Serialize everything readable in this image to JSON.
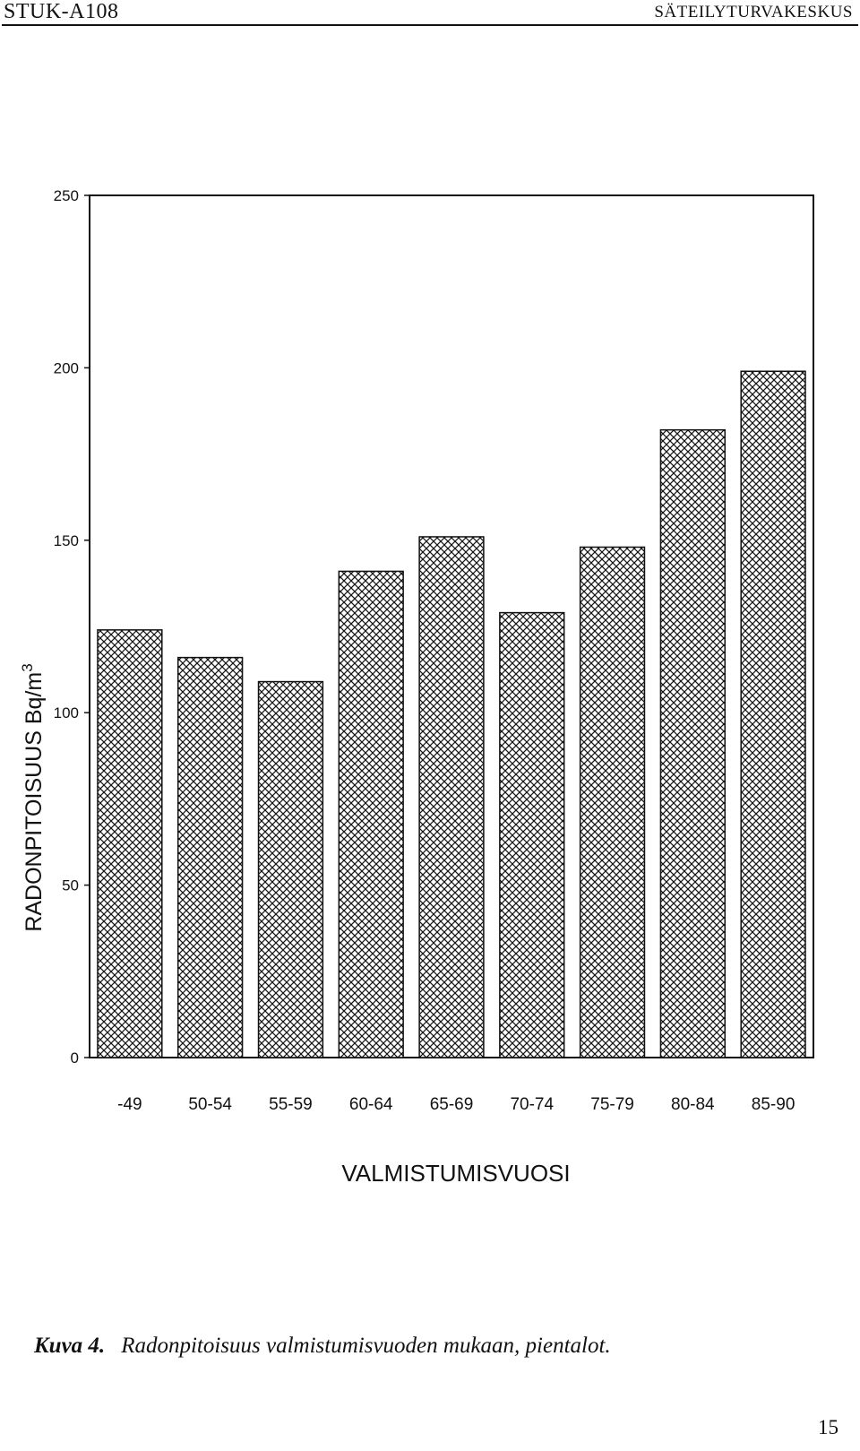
{
  "header": {
    "report_id": "STUK-A108",
    "organization": "SÄTEILYTURVAKESKUS"
  },
  "chart_data": {
    "type": "bar",
    "categories": [
      "-49",
      "50-54",
      "55-59",
      "60-64",
      "65-69",
      "70-74",
      "75-79",
      "80-84",
      "85-90"
    ],
    "values": [
      124,
      116,
      109,
      141,
      151,
      129,
      148,
      182,
      199
    ],
    "xlabel": "VALMISTUMISVUOSI",
    "ylabel": "RADONPITOISUUS  Bq/m",
    "ylabel_superscript": "3",
    "ylim": [
      0,
      250
    ],
    "yticks": [
      0,
      50,
      100,
      150,
      200,
      250
    ],
    "bar_pattern": "crosshatch",
    "bar_color": "#111111"
  },
  "caption": {
    "label": "Kuva 4.",
    "text": "Radonpitoisuus valmistumisvuoden mukaan, pientalot."
  },
  "page_number": "15"
}
